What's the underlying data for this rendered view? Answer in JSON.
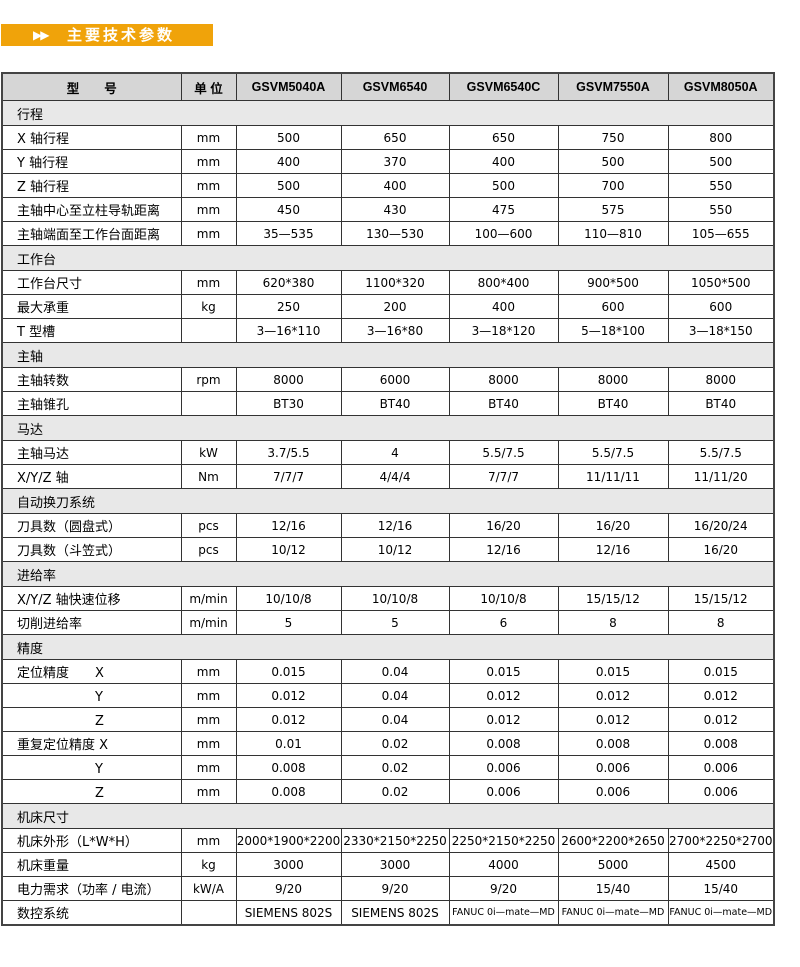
{
  "banner": {
    "arrow_icon": "double-play-arrow",
    "title": "主要技术参数",
    "color": "#f0a30a"
  },
  "header": [
    "型　　号",
    "单 位",
    "GSVM5040A",
    "GSVM6540",
    "GSVM6540C",
    "GSVM7550A",
    "GSVM8050A"
  ],
  "sections": [
    {
      "title": "行程",
      "rows": [
        [
          "X 轴行程",
          "mm",
          "500",
          "650",
          "650",
          "750",
          "800"
        ],
        [
          "Y 轴行程",
          "mm",
          "400",
          "370",
          "400",
          "500",
          "500"
        ],
        [
          "Z 轴行程",
          "mm",
          "500",
          "400",
          "500",
          "700",
          "550"
        ],
        [
          "主轴中心至立柱导轨距离",
          "mm",
          "450",
          "430",
          "475",
          "575",
          "550"
        ],
        [
          "主轴端面至工作台面距离",
          "mm",
          "35—535",
          "130—530",
          "100—600",
          "110—810",
          "105—655"
        ]
      ]
    },
    {
      "title": "工作台",
      "rows": [
        [
          "工作台尺寸",
          "mm",
          "620*380",
          "1100*320",
          "800*400",
          "900*500",
          "1050*500"
        ],
        [
          "最大承重",
          "kg",
          "250",
          "200",
          "400",
          "600",
          "600"
        ],
        [
          "T 型槽",
          "",
          "3—16*110",
          "3—16*80",
          "3—18*120",
          "5—18*100",
          "3—18*150"
        ]
      ]
    },
    {
      "title": "主轴",
      "rows": [
        [
          "主轴转数",
          "rpm",
          "8000",
          "6000",
          "8000",
          "8000",
          "8000"
        ],
        [
          "主轴锥孔",
          "",
          "BT30",
          "BT40",
          "BT40",
          "BT40",
          "BT40"
        ]
      ]
    },
    {
      "title": "马达",
      "rows": [
        [
          "主轴马达",
          "kW",
          "3.7/5.5",
          "4",
          "5.5/7.5",
          "5.5/7.5",
          "5.5/7.5"
        ],
        [
          "X/Y/Z 轴",
          "Nm",
          "7/7/7",
          "4/4/4",
          "7/7/7",
          "11/11/11",
          "11/11/20"
        ]
      ]
    },
    {
      "title": "自动换刀系统",
      "rows": [
        [
          "刀具数（圆盘式）",
          "pcs",
          "12/16",
          "12/16",
          "16/20",
          "16/20",
          "16/20/24"
        ],
        [
          "刀具数（斗笠式）",
          "pcs",
          "10/12",
          "10/12",
          "12/16",
          "12/16",
          "16/20"
        ]
      ]
    },
    {
      "title": "进给率",
      "rows": [
        [
          "X/Y/Z 轴快速位移",
          "m/min",
          "10/10/8",
          "10/10/8",
          "10/10/8",
          "15/15/12",
          "15/15/12"
        ],
        [
          "切削进给率",
          "m/min",
          "5",
          "5",
          "6",
          "8",
          "8"
        ]
      ]
    },
    {
      "title": "精度",
      "rows": [
        [
          "定位精度　　X",
          "mm",
          "0.015",
          "0.04",
          "0.015",
          "0.015",
          "0.015"
        ],
        [
          "　　　　　　Y",
          "mm",
          "0.012",
          "0.04",
          "0.012",
          "0.012",
          "0.012"
        ],
        [
          "　　　　　　Z",
          "mm",
          "0.012",
          "0.04",
          "0.012",
          "0.012",
          "0.012"
        ],
        [
          "重复定位精度 X",
          "mm",
          "0.01",
          "0.02",
          "0.008",
          "0.008",
          "0.008"
        ],
        [
          "　　　　　　Y",
          "mm",
          "0.008",
          "0.02",
          "0.006",
          "0.006",
          "0.006"
        ],
        [
          "　　　　　　Z",
          "mm",
          "0.008",
          "0.02",
          "0.006",
          "0.006",
          "0.006"
        ]
      ]
    },
    {
      "title": "机床尺寸",
      "rows": [
        [
          "机床外形（L*W*H）",
          "mm",
          "2000*1900*2200",
          "2330*2150*2250",
          "2250*2150*2250",
          "2600*2200*2650",
          "2700*2250*2700"
        ],
        [
          "机床重量",
          "kg",
          "3000",
          "3000",
          "4000",
          "5000",
          "4500"
        ],
        [
          "电力需求（功率 / 电流）",
          "kW/A",
          "9/20",
          "9/20",
          "9/20",
          "15/40",
          "15/40"
        ],
        [
          "数控系统",
          "",
          "SIEMENS 802S",
          "SIEMENS 802S",
          "FANUC 0i—mate—MD",
          "FANUC 0i—mate—MD",
          "FANUC 0i—mate—MD"
        ]
      ]
    }
  ]
}
